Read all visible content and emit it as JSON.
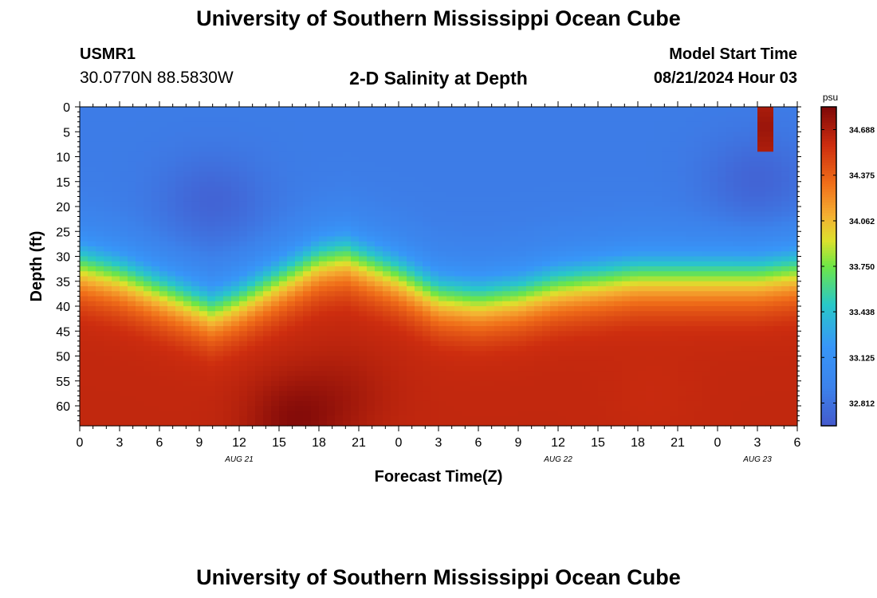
{
  "header": {
    "title": "University of Southern Mississippi Ocean Cube",
    "station": "USMR1",
    "coords": "30.0770N  88.5830W",
    "subtitle": "2-D Salinity at Depth",
    "model_start_label": "Model Start Time",
    "model_start_value": "08/21/2024 Hour 03"
  },
  "footer": {
    "title": "University of Southern Mississippi Ocean Cube"
  },
  "chart_data": {
    "type": "heatmap",
    "title": "2-D Salinity at Depth",
    "xlabel": "Forecast Time(Z)",
    "ylabel": "Depth (ft)",
    "x_tick_labels": [
      "0",
      "3",
      "6",
      "9",
      "12",
      "15",
      "18",
      "21",
      "0",
      "3",
      "6",
      "9",
      "12",
      "15",
      "18",
      "21",
      "0",
      "3",
      "6"
    ],
    "date_labels": [
      {
        "label": "AUG 21",
        "at_hours": 12
      },
      {
        "label": "AUG 22",
        "at_hours": 36
      },
      {
        "label": "AUG 23",
        "at_hours": 51
      }
    ],
    "x_range_hours": [
      0,
      54
    ],
    "y_ticks": [
      0,
      5,
      10,
      15,
      20,
      25,
      30,
      35,
      40,
      45,
      50,
      55,
      60
    ],
    "y_range": [
      0,
      64
    ],
    "colorbar": {
      "unit": "psu",
      "ticks": [
        34.688,
        34.375,
        34.062,
        33.75,
        33.438,
        33.125,
        32.812
      ],
      "range": [
        32.656,
        34.844
      ]
    },
    "surface_salinity": 32.88,
    "deep_salinity": 34.62,
    "halocline_depth_by_hour": [
      [
        0,
        31
      ],
      [
        3,
        33
      ],
      [
        6,
        36
      ],
      [
        9,
        39
      ],
      [
        10,
        40
      ],
      [
        12,
        38
      ],
      [
        15,
        34
      ],
      [
        18,
        30
      ],
      [
        20,
        29
      ],
      [
        21,
        30
      ],
      [
        24,
        33
      ],
      [
        27,
        37
      ],
      [
        30,
        38
      ],
      [
        33,
        37
      ],
      [
        36,
        35
      ],
      [
        39,
        34
      ],
      [
        42,
        33
      ],
      [
        45,
        33
      ],
      [
        48,
        33
      ],
      [
        51,
        33
      ],
      [
        54,
        32
      ]
    ],
    "salinity_max_time_depth": [
      [
        16,
        63,
        34.8
      ],
      [
        20,
        58,
        34.7
      ],
      [
        43,
        58,
        34.6
      ]
    ],
    "surface_low_patches": [
      [
        10,
        19,
        32.72
      ],
      [
        51,
        15,
        32.72
      ]
    ],
    "surface_high_patch": [
      51.5,
      4,
      34.75
    ]
  }
}
